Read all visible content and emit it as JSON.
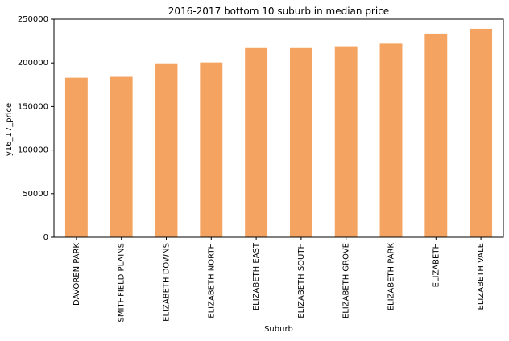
{
  "chart_data": {
    "type": "bar",
    "title": "2016-2017 bottom 10 suburb in median price",
    "xlabel": "Suburb",
    "ylabel": "y16_17_price",
    "categories": [
      "DAVOREN PARK",
      "SMITHFIELD PLAINS",
      "ELIZABETH DOWNS",
      "ELIZABETH NORTH",
      "ELIZABETH EAST",
      "ELIZABETH SOUTH",
      "ELIZABETH GROVE",
      "ELIZABETH PARK",
      "ELIZABETH",
      "ELIZABETH VALE"
    ],
    "values": [
      183000,
      184000,
      199500,
      200500,
      217000,
      217000,
      219000,
      222000,
      233500,
      239000
    ],
    "ylim": [
      0,
      250000
    ],
    "yticks": [
      "0",
      "50000",
      "100000",
      "150000",
      "200000",
      "250000"
    ],
    "bar_color": "#f4a460",
    "grid": false,
    "legend": "none"
  }
}
